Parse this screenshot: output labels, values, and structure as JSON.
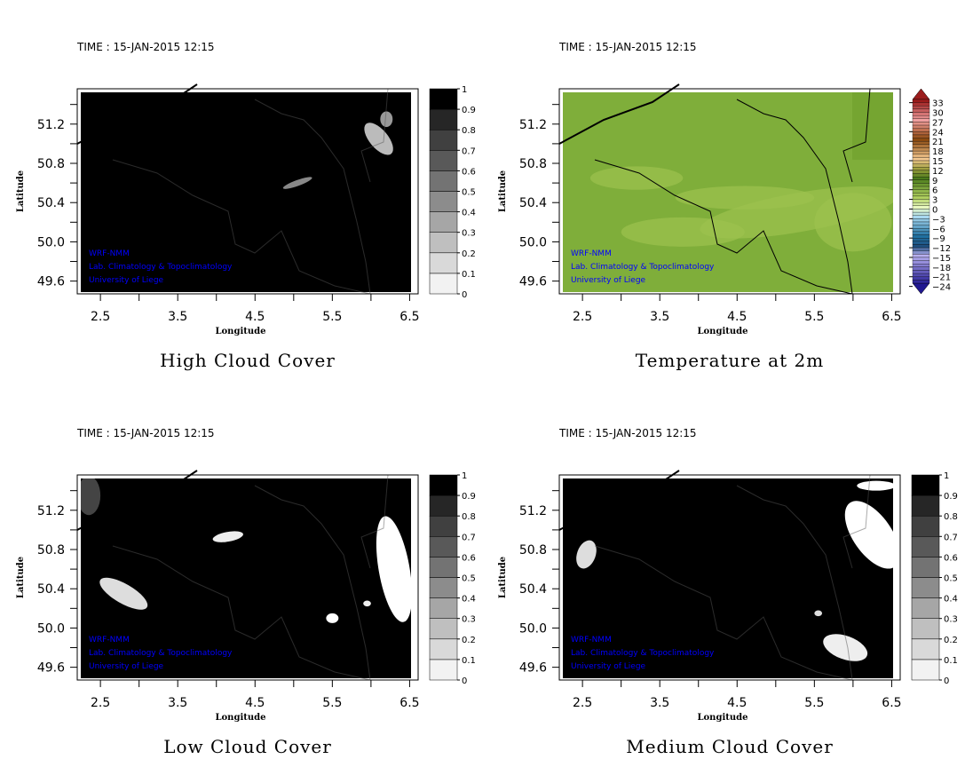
{
  "panels": [
    {
      "id": "high-cloud",
      "title": "High Cloud Cover",
      "time": "TIME : 15-JAN-2015 12:15",
      "type": "cloud",
      "colorbar_labels": [
        "1",
        "0.9",
        "0.8",
        "0.7",
        "0.6",
        "0.5",
        "0.4",
        "0.3",
        "0.2",
        "0.1",
        "0"
      ]
    },
    {
      "id": "temperature-2m",
      "title": "Temperature at 2m",
      "time": "TIME : 15-JAN-2015 12:15",
      "type": "temp",
      "colorbar_labels": [
        "33",
        "30",
        "27",
        "24",
        "21",
        "18",
        "15",
        "12",
        "9",
        "6",
        "3",
        "0",
        "−3",
        "−6",
        "−9",
        "−12",
        "−15",
        "−18",
        "−21",
        "−24"
      ]
    },
    {
      "id": "low-cloud",
      "title": "Low Cloud Cover",
      "time": "TIME : 15-JAN-2015 12:15",
      "type": "cloud",
      "colorbar_labels": [
        "1",
        "0.9",
        "0.8",
        "0.7",
        "0.6",
        "0.5",
        "0.4",
        "0.3",
        "0.2",
        "0.1",
        "0"
      ]
    },
    {
      "id": "medium-cloud",
      "title": "Medium Cloud Cover",
      "time": "TIME : 15-JAN-2015 12:15",
      "type": "cloud",
      "colorbar_labels": [
        "1",
        "0.9",
        "0.8",
        "0.7",
        "0.6",
        "0.5",
        "0.4",
        "0.3",
        "0.2",
        "0.1",
        "0"
      ]
    }
  ],
  "axes": {
    "xlabel": "Longitude",
    "ylabel": "Latitude",
    "lon_ticks": [
      "2.5",
      "3.5",
      "4.5",
      "5.5",
      "6.5"
    ],
    "lat_ticks": [
      "51.2",
      "50.8",
      "50.4",
      "50.0",
      "49.6"
    ],
    "lon_range": [
      2.2,
      6.61
    ],
    "lat_range": [
      49.47,
      51.56
    ]
  },
  "credits": [
    "WRF-NMM",
    "Lab. Climatology & Topoclimatology",
    "University of Liege"
  ],
  "colors": {
    "temp_field": "#7fae3a",
    "temp_field_light": "#9cc24e",
    "credit": "#0000ff"
  }
}
